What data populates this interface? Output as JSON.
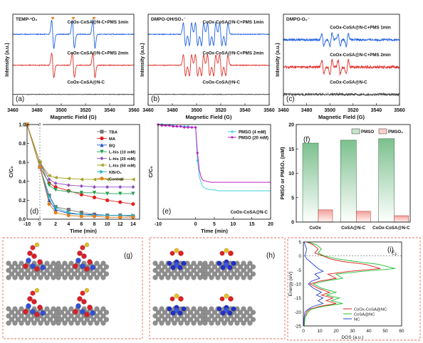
{
  "chart_data": [
    {
      "panel": "(a)",
      "type": "line",
      "title": "TEMP-¹O₂",
      "xlabel": "Magnetic Field (G)",
      "ylabel": "Intensity (a.u.)",
      "xlim": [
        3460,
        3560
      ],
      "xticks": [
        "3460",
        "3480",
        "3500",
        "3520",
        "3540",
        "3560"
      ],
      "series": [
        {
          "name": "CoOx-CoSA@N-C+PMS 1min",
          "color": "#2060e0",
          "offset": 0.78,
          "peaks": [
            3493,
            3510,
            3527
          ],
          "amp": 0.16,
          "noise": 0.004
        },
        {
          "name": "CoOx-CoSA@N-C+PMS 2min",
          "color": "#e0302a",
          "offset": 0.44,
          "peaks": [
            3493,
            3510,
            3527
          ],
          "amp": 0.14,
          "noise": 0.004
        },
        {
          "name": "CoOx-CoSA@N-C",
          "color": "#444444",
          "offset": 0.12,
          "peaks": [],
          "amp": 0,
          "noise": 0.003
        }
      ],
      "markers": [
        3493,
        3510,
        3527
      ],
      "marker_color": "#e87c1a"
    },
    {
      "panel": "(b)",
      "type": "line",
      "title": "DMPO-OH/SO₄⁻",
      "xlabel": "Magnetic Field (G)",
      "ylabel": "Intensity (a.u.)",
      "xlim": [
        3460,
        3560
      ],
      "xticks": [
        "3460",
        "3480",
        "3500",
        "3520",
        "3540",
        "3560"
      ],
      "series": [
        {
          "name": "CoOx-CoSA@N-C+PMS 1min",
          "color": "#2060e0",
          "offset": 0.78,
          "peaks": [
            3490,
            3495,
            3500,
            3505,
            3510,
            3515,
            3520,
            3525
          ],
          "amp": 0.13,
          "noise": 0.004
        },
        {
          "name": "CoOx-CoSA@N-C+PMS 2min",
          "color": "#e0302a",
          "offset": 0.44,
          "peaks": [
            3490,
            3495,
            3500,
            3505,
            3510,
            3515,
            3520,
            3525
          ],
          "amp": 0.12,
          "noise": 0.004
        },
        {
          "name": "CoOx-CoSA@N-C",
          "color": "#444444",
          "offset": 0.12,
          "peaks": [],
          "amp": 0,
          "noise": 0.003
        }
      ]
    },
    {
      "panel": "(c)",
      "type": "line",
      "title": "DMPO-O₂⁻",
      "xlabel": "Magnetic Field (G)",
      "ylabel": "Intensity (a.u.)",
      "xlim": [
        3460,
        3560
      ],
      "xticks": [
        "3460",
        "3480",
        "3500",
        "3520",
        "3540",
        "3560"
      ],
      "series": [
        {
          "name": "CoOx-CoSA@N-C+PMS 1min",
          "color": "#2060e0",
          "offset": 0.72,
          "peaks": [
            3494,
            3501,
            3508,
            3515
          ],
          "amp": 0.07,
          "noise": 0.012
        },
        {
          "name": "CoOx-CoSA@N-C+PMS 2min",
          "color": "#e0302a",
          "offset": 0.42,
          "peaks": [
            3494,
            3501,
            3508,
            3515
          ],
          "amp": 0.08,
          "noise": 0.014
        },
        {
          "name": "CoOx-CoSA@N-C",
          "color": "#444444",
          "offset": 0.12,
          "peaks": [],
          "amp": 0,
          "noise": 0.012
        }
      ]
    },
    {
      "panel": "(d)",
      "type": "line",
      "xlabel": "Time (min)",
      "ylabel": "C/C₀",
      "xlim": [
        -10,
        15
      ],
      "ylim": [
        0,
        1.0
      ],
      "xticks": [
        "-10",
        "0",
        "2",
        "4",
        "6",
        "8",
        "10",
        "12",
        "14"
      ],
      "yticks": [
        "0.0",
        "0.2",
        "0.4",
        "0.6",
        "0.8",
        "1.0"
      ],
      "x": [
        -10,
        0,
        1,
        2,
        4,
        6,
        8,
        10,
        12,
        14
      ],
      "series": [
        {
          "name": "TBA",
          "color": "#777777",
          "marker": "square",
          "values": [
            1.0,
            0.55,
            0.25,
            0.13,
            0.1,
            0.07,
            0.05,
            0.04,
            0.04,
            0.03
          ]
        },
        {
          "name": "MA",
          "color": "#e02020",
          "marker": "circle",
          "values": [
            1.0,
            0.55,
            0.38,
            0.34,
            0.3,
            0.26,
            0.23,
            0.2,
            0.18,
            0.16
          ]
        },
        {
          "name": "BQ",
          "color": "#2050d0",
          "marker": "triangle",
          "values": [
            1.0,
            0.55,
            0.2,
            0.1,
            0.06,
            0.05,
            0.05,
            0.04,
            0.04,
            0.04
          ]
        },
        {
          "name": "L-his (10 mM)",
          "color": "#20a050",
          "marker": "triangle-down",
          "values": [
            1.0,
            0.6,
            0.36,
            0.31,
            0.29,
            0.28,
            0.28,
            0.27,
            0.27,
            0.27
          ]
        },
        {
          "name": "L-his (20 mM)",
          "color": "#9050c0",
          "marker": "diamond",
          "values": [
            1.0,
            0.6,
            0.42,
            0.38,
            0.36,
            0.35,
            0.34,
            0.34,
            0.34,
            0.34
          ]
        },
        {
          "name": "L-his (50 mM)",
          "color": "#a0a020",
          "marker": "triangle-left",
          "values": [
            1.0,
            0.6,
            0.46,
            0.44,
            0.43,
            0.42,
            0.42,
            0.42,
            0.42,
            0.42
          ]
        },
        {
          "name": "KBrO₃",
          "color": "#20b0c0",
          "marker": "triangle-right",
          "values": [
            1.0,
            0.55,
            0.24,
            0.12,
            0.07,
            0.05,
            0.04,
            0.04,
            0.04,
            0.04
          ]
        },
        {
          "name": "Control",
          "color": "#e08020",
          "marker": "hexagon",
          "values": [
            1.0,
            0.55,
            0.16,
            0.07,
            0.04,
            0.03,
            0.03,
            0.02,
            0.02,
            0.02
          ]
        }
      ]
    },
    {
      "panel": "(e)",
      "type": "line",
      "xlabel": "Time (min)",
      "ylabel": "C/C₀",
      "xlim": [
        -10,
        20
      ],
      "ylim": [
        0,
        1.0
      ],
      "xticks": [
        "-10",
        "0",
        "5",
        "10",
        "15",
        "20"
      ],
      "annotation": "CoOx-CoSA@N-C",
      "series": [
        {
          "name": "PMSO (4 mM)",
          "color": "#40d0e0",
          "x": [
            -10,
            -9,
            -8,
            -7,
            -6,
            -5,
            -4,
            -3,
            -2,
            -1,
            0,
            0.5,
            1,
            1.5,
            2,
            3,
            4,
            5,
            6,
            8,
            10,
            12,
            15,
            18,
            20
          ],
          "values": [
            1.0,
            1.0,
            0.99,
            0.99,
            0.99,
            0.98,
            0.98,
            0.98,
            0.98,
            0.97,
            0.97,
            0.62,
            0.45,
            0.38,
            0.34,
            0.32,
            0.31,
            0.31,
            0.3,
            0.3,
            0.3,
            0.3,
            0.3,
            0.3,
            0.3
          ]
        },
        {
          "name": "PMSO (20 mM)",
          "color": "#c020c0",
          "x": [
            -10,
            -9,
            -8,
            -7,
            -6,
            -5,
            -4,
            -3,
            -2,
            -1,
            0,
            0.5,
            1,
            1.5,
            2,
            3,
            4,
            5,
            6,
            8,
            10,
            12,
            15,
            18,
            20
          ],
          "values": [
            1.0,
            0.99,
            0.99,
            0.99,
            0.98,
            0.98,
            0.98,
            0.97,
            0.97,
            0.97,
            0.97,
            0.7,
            0.52,
            0.44,
            0.41,
            0.4,
            0.39,
            0.39,
            0.39,
            0.39,
            0.39,
            0.39,
            0.39,
            0.39,
            0.39
          ]
        }
      ]
    },
    {
      "panel": "(f)",
      "type": "bar",
      "ylabel": "PMSO or PMSO₂ (mM)",
      "ylim": [
        0,
        20
      ],
      "yticks": [
        "0",
        "5",
        "10",
        "15",
        "20"
      ],
      "categories": [
        "CoOx",
        "CoSA@N-C",
        "CoOx-CoSA@N-C"
      ],
      "series": [
        {
          "name": "PMSO",
          "color": "#7cc08e",
          "values": [
            16.2,
            16.8,
            17.1
          ]
        },
        {
          "name": "PMSO₂",
          "color": "#f2a09a",
          "values": [
            2.5,
            2.2,
            1.3
          ]
        }
      ]
    },
    {
      "panel": "(i)",
      "type": "line",
      "xlabel": "DOS (a.u.)",
      "ylabel": "Energy (eV)",
      "xlim": [
        0,
        60
      ],
      "ylim": [
        -25,
        5
      ],
      "xticks": [
        "0",
        "10",
        "20",
        "30",
        "40",
        "50",
        "60"
      ],
      "yticks": [
        "5",
        "0",
        "-5",
        "-10",
        "-15",
        "-20",
        "-25"
      ],
      "fermi_label": "E",
      "fermi_sub": "F",
      "series": [
        {
          "name": "CoOx-CoSA@NC",
          "color": "#e02020",
          "points": [
            [
              2,
              5
            ],
            [
              6,
              4
            ],
            [
              9,
              2.5
            ],
            [
              7,
              1
            ],
            [
              12,
              0
            ],
            [
              16,
              -1
            ],
            [
              24,
              -2
            ],
            [
              38,
              -3
            ],
            [
              47,
              -4.5
            ],
            [
              28,
              -5.5
            ],
            [
              15,
              -6.5
            ],
            [
              20,
              -8
            ],
            [
              10,
              -9
            ],
            [
              4,
              -10
            ],
            [
              9,
              -11.5
            ],
            [
              16,
              -13
            ],
            [
              11,
              -14
            ],
            [
              18,
              -15
            ],
            [
              14,
              -16
            ],
            [
              20,
              -17
            ],
            [
              10,
              -18
            ],
            [
              4,
              -19
            ],
            [
              2,
              -20
            ],
            [
              1,
              -22
            ],
            [
              0.5,
              -25
            ]
          ]
        },
        {
          "name": "CoSA@NC",
          "color": "#20c030",
          "points": [
            [
              3,
              5
            ],
            [
              8,
              4
            ],
            [
              11,
              2.5
            ],
            [
              9,
              1
            ],
            [
              13,
              0
            ],
            [
              20,
              -1
            ],
            [
              32,
              -2
            ],
            [
              46,
              -3
            ],
            [
              56,
              -4.5
            ],
            [
              36,
              -5.5
            ],
            [
              20,
              -6.5
            ],
            [
              24,
              -8
            ],
            [
              13,
              -9
            ],
            [
              6,
              -10
            ],
            [
              11,
              -11.5
            ],
            [
              20,
              -13
            ],
            [
              14,
              -14
            ],
            [
              22,
              -15
            ],
            [
              17,
              -16
            ],
            [
              24,
              -17
            ],
            [
              12,
              -18
            ],
            [
              5,
              -19
            ],
            [
              3,
              -20
            ],
            [
              1,
              -22
            ],
            [
              0.5,
              -25
            ]
          ]
        },
        {
          "name": "NC",
          "color": "#2040d0",
          "points": [
            [
              0.5,
              5
            ],
            [
              1,
              4
            ],
            [
              2,
              2.5
            ],
            [
              1.5,
              1
            ],
            [
              1,
              0
            ],
            [
              2,
              -1
            ],
            [
              4,
              -2
            ],
            [
              6,
              -3
            ],
            [
              9,
              -4.5
            ],
            [
              12,
              -5.5
            ],
            [
              7,
              -6.5
            ],
            [
              10,
              -8
            ],
            [
              5,
              -9
            ],
            [
              3,
              -10
            ],
            [
              6,
              -11.5
            ],
            [
              11,
              -13
            ],
            [
              8,
              -14
            ],
            [
              12,
              -15
            ],
            [
              9,
              -16
            ],
            [
              12,
              -17
            ],
            [
              6,
              -18
            ],
            [
              3,
              -19
            ],
            [
              1,
              -20
            ],
            [
              0.5,
              -22
            ],
            [
              0.2,
              -25
            ]
          ]
        }
      ]
    }
  ],
  "panels": {
    "g": {
      "label": "(g)"
    },
    "h": {
      "label": "(h)"
    }
  }
}
